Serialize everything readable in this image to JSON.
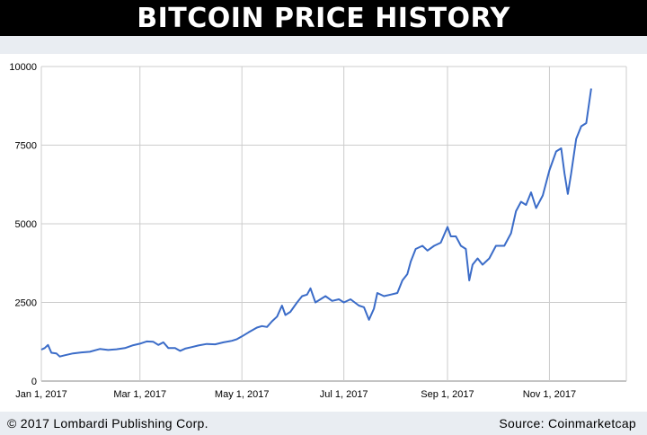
{
  "header": {
    "title": "BITCOIN PRICE HISTORY"
  },
  "footer": {
    "copyright": "© 2017 Lombardi Publishing Corp.",
    "source": "Source: Coinmarketcap"
  },
  "colors": {
    "line": "#3b6cc8",
    "grid": "#cccccc",
    "title_bg": "#000000",
    "strip_bg": "#e9edf2"
  },
  "chart_data": {
    "type": "line",
    "title": "",
    "xlabel": "",
    "ylabel": "",
    "xlim": [
      "2017-01-01",
      "2017-12-17"
    ],
    "ylim": [
      0,
      10000
    ],
    "grid": true,
    "yticks": [
      0,
      2500,
      5000,
      7500,
      10000
    ],
    "xticks": [
      {
        "date": "2017-01-01",
        "label": "Jan 1, 2017"
      },
      {
        "date": "2017-03-01",
        "label": "Mar 1, 2017"
      },
      {
        "date": "2017-05-01",
        "label": "May 1, 2017"
      },
      {
        "date": "2017-07-01",
        "label": "Jul 1, 2017"
      },
      {
        "date": "2017-09-01",
        "label": "Sep 1, 2017"
      },
      {
        "date": "2017-11-01",
        "label": "Nov 1, 2017"
      }
    ],
    "series": [
      {
        "points": [
          [
            "2017-01-01",
            1000
          ],
          [
            "2017-01-03",
            1050
          ],
          [
            "2017-01-05",
            1150
          ],
          [
            "2017-01-07",
            900
          ],
          [
            "2017-01-10",
            880
          ],
          [
            "2017-01-12",
            780
          ],
          [
            "2017-01-15",
            820
          ],
          [
            "2017-01-20",
            880
          ],
          [
            "2017-01-25",
            910
          ],
          [
            "2017-01-30",
            930
          ],
          [
            "2017-02-05",
            1020
          ],
          [
            "2017-02-10",
            990
          ],
          [
            "2017-02-15",
            1010
          ],
          [
            "2017-02-20",
            1050
          ],
          [
            "2017-02-25",
            1140
          ],
          [
            "2017-03-01",
            1190
          ],
          [
            "2017-03-05",
            1260
          ],
          [
            "2017-03-09",
            1250
          ],
          [
            "2017-03-12",
            1150
          ],
          [
            "2017-03-15",
            1230
          ],
          [
            "2017-03-18",
            1050
          ],
          [
            "2017-03-22",
            1050
          ],
          [
            "2017-03-25",
            960
          ],
          [
            "2017-03-28",
            1030
          ],
          [
            "2017-04-01",
            1080
          ],
          [
            "2017-04-05",
            1130
          ],
          [
            "2017-04-10",
            1180
          ],
          [
            "2017-04-15",
            1170
          ],
          [
            "2017-04-20",
            1230
          ],
          [
            "2017-04-25",
            1280
          ],
          [
            "2017-04-28",
            1330
          ],
          [
            "2017-05-01",
            1420
          ],
          [
            "2017-05-05",
            1550
          ],
          [
            "2017-05-10",
            1700
          ],
          [
            "2017-05-13",
            1750
          ],
          [
            "2017-05-16",
            1720
          ],
          [
            "2017-05-19",
            1900
          ],
          [
            "2017-05-22",
            2050
          ],
          [
            "2017-05-25",
            2400
          ],
          [
            "2017-05-27",
            2100
          ],
          [
            "2017-05-30",
            2200
          ],
          [
            "2017-06-03",
            2500
          ],
          [
            "2017-06-06",
            2700
          ],
          [
            "2017-06-09",
            2750
          ],
          [
            "2017-06-11",
            2950
          ],
          [
            "2017-06-14",
            2500
          ],
          [
            "2017-06-17",
            2600
          ],
          [
            "2017-06-20",
            2700
          ],
          [
            "2017-06-24",
            2550
          ],
          [
            "2017-06-28",
            2600
          ],
          [
            "2017-07-01",
            2500
          ],
          [
            "2017-07-05",
            2600
          ],
          [
            "2017-07-10",
            2400
          ],
          [
            "2017-07-13",
            2350
          ],
          [
            "2017-07-16",
            1950
          ],
          [
            "2017-07-19",
            2300
          ],
          [
            "2017-07-21",
            2800
          ],
          [
            "2017-07-25",
            2700
          ],
          [
            "2017-07-29",
            2750
          ],
          [
            "2017-08-02",
            2800
          ],
          [
            "2017-08-05",
            3200
          ],
          [
            "2017-08-08",
            3400
          ],
          [
            "2017-08-10",
            3800
          ],
          [
            "2017-08-13",
            4200
          ],
          [
            "2017-08-17",
            4300
          ],
          [
            "2017-08-20",
            4150
          ],
          [
            "2017-08-24",
            4300
          ],
          [
            "2017-08-28",
            4400
          ],
          [
            "2017-09-01",
            4900
          ],
          [
            "2017-09-03",
            4600
          ],
          [
            "2017-09-06",
            4600
          ],
          [
            "2017-09-09",
            4300
          ],
          [
            "2017-09-12",
            4200
          ],
          [
            "2017-09-14",
            3200
          ],
          [
            "2017-09-16",
            3700
          ],
          [
            "2017-09-19",
            3900
          ],
          [
            "2017-09-22",
            3700
          ],
          [
            "2017-09-26",
            3900
          ],
          [
            "2017-09-30",
            4300
          ],
          [
            "2017-10-05",
            4300
          ],
          [
            "2017-10-09",
            4700
          ],
          [
            "2017-10-12",
            5400
          ],
          [
            "2017-10-15",
            5700
          ],
          [
            "2017-10-18",
            5600
          ],
          [
            "2017-10-21",
            6000
          ],
          [
            "2017-10-24",
            5500
          ],
          [
            "2017-10-28",
            5900
          ],
          [
            "2017-11-01",
            6700
          ],
          [
            "2017-11-05",
            7300
          ],
          [
            "2017-11-08",
            7400
          ],
          [
            "2017-11-10",
            6600
          ],
          [
            "2017-11-12",
            5950
          ],
          [
            "2017-11-14",
            6600
          ],
          [
            "2017-11-17",
            7700
          ],
          [
            "2017-11-20",
            8100
          ],
          [
            "2017-11-23",
            8200
          ],
          [
            "2017-11-26",
            9300
          ]
        ]
      }
    ]
  }
}
